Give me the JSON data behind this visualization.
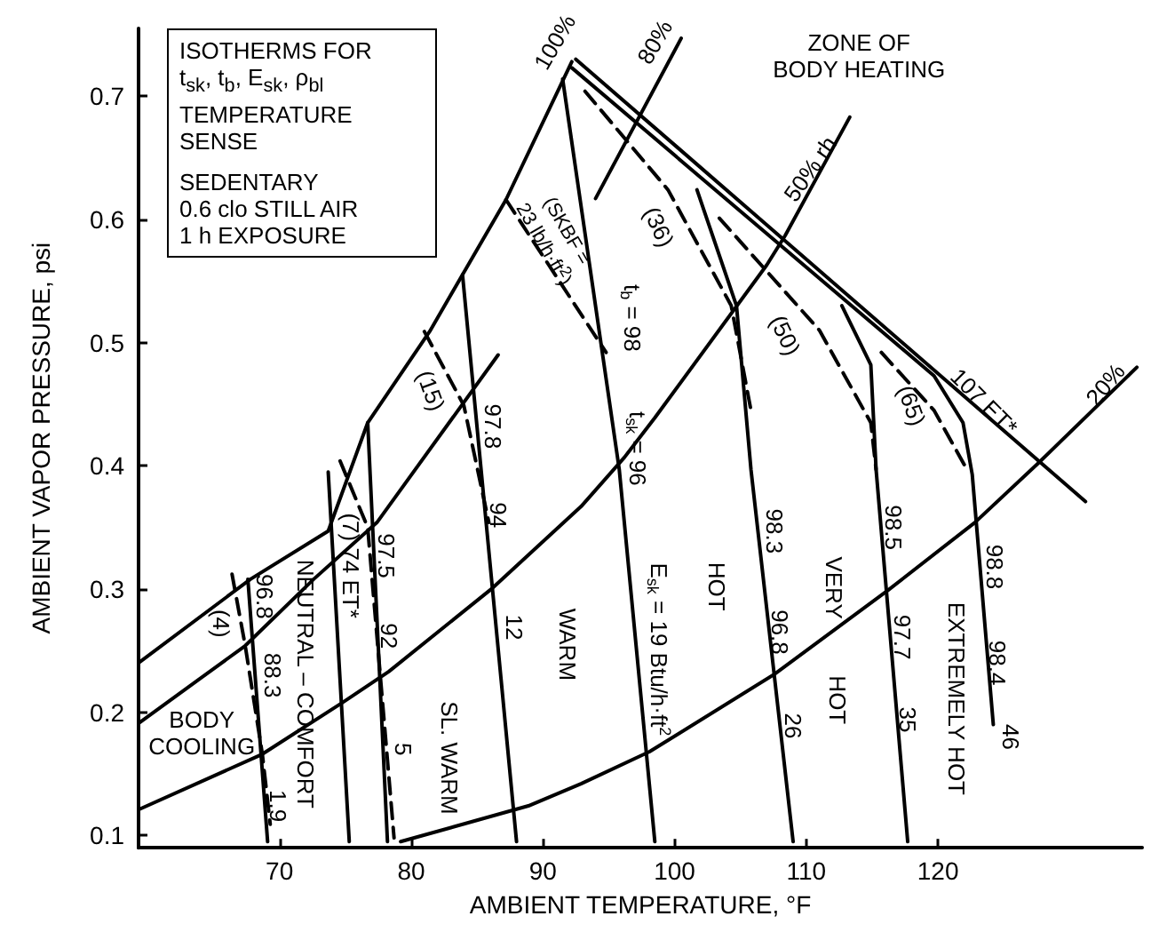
{
  "chart_data": {
    "type": "line",
    "xlabel": "AMBIENT TEMPERATURE, °F",
    "ylabel": "AMBIENT VAPOR PRESSURE, psi",
    "xlim": [
      59.3,
      135.5
    ],
    "xticks": [
      70,
      80,
      90,
      100,
      110,
      120
    ],
    "ylim": [
      0.09,
      0.755
    ],
    "yticks": [
      0.1,
      0.2,
      0.3,
      0.4,
      0.5,
      0.6,
      0.7
    ],
    "grid": false,
    "marker": "none",
    "series": [
      {
        "x": [
          59.3,
          67.8,
          73.7,
          76.7,
          81.4,
          87.2,
          92.2
        ],
        "values": [
          0.24,
          0.308,
          0.347,
          0.435,
          0.509,
          0.616,
          0.728
        ],
        "color": "#000000",
        "line_style": "solid"
      },
      {
        "x": [
          59.3,
          67.4,
          72.6,
          77.4,
          86.6,
          88.0,
          94.0,
          100.5
        ],
        "values": [
          0.191,
          0.254,
          0.308,
          0.354,
          0.49,
          null,
          0.617,
          0.747
        ],
        "color": "#000000",
        "line_style": "solid"
      },
      {
        "x": [
          59.3,
          68.7,
          74.8,
          78.3,
          86.2,
          92.9,
          96.2,
          98.5,
          107.0,
          108.4,
          113.3
        ],
        "values": [
          0.121,
          0.166,
          0.208,
          0.233,
          0.301,
          0.367,
          0.407,
          0.439,
          0.563,
          0.587,
          0.683
        ],
        "color": "#000000",
        "line_style": "solid"
      },
      {
        "x": [
          79.2,
          88.9,
          92.9,
          98.1,
          107.6,
          116.2,
          122.8,
          127.6,
          135.1
        ],
        "values": [
          0.095,
          0.124,
          0.142,
          0.168,
          0.231,
          0.299,
          0.354,
          0.402,
          0.48
        ],
        "color": "#000000",
        "line_style": "solid"
      },
      {
        "x": [
          92.5,
          131.2
        ],
        "values": [
          0.73,
          0.371
        ],
        "color": "#000000",
        "line_style": "solid"
      },
      {
        "x": [
          67.6,
          69.1
        ],
        "values": [
          0.308,
          0.095
        ],
        "color": "#000000",
        "line_style": "solid"
      },
      {
        "x": [
          73.7,
          75.3
        ],
        "values": [
          0.395,
          0.095
        ],
        "color": "#000000",
        "line_style": "solid"
      },
      {
        "x": [
          76.7,
          78.2
        ],
        "values": [
          0.435,
          0.095
        ],
        "color": "#000000",
        "line_style": "solid"
      },
      {
        "x": [
          83.9,
          88.0
        ],
        "values": [
          0.555,
          0.095
        ],
        "color": "#000000",
        "line_style": "solid"
      },
      {
        "x": [
          91.5,
          95.8,
          98.5
        ],
        "values": [
          0.714,
          0.397,
          0.095
        ],
        "color": "#000000",
        "line_style": "solid"
      },
      {
        "x": [
          101.7,
          104.7,
          105.8,
          109.0
        ],
        "values": [
          0.624,
          0.53,
          0.397,
          0.095
        ],
        "color": "#000000",
        "line_style": "solid"
      },
      {
        "x": [
          112.7,
          114.9,
          115.3,
          117.7
        ],
        "values": [
          0.53,
          0.482,
          0.397,
          0.095
        ],
        "color": "#000000",
        "line_style": "solid"
      },
      {
        "x": [
          92.2,
          119.7,
          121.9,
          122.6,
          124.2
        ],
        "values": [
          0.723,
          0.473,
          0.435,
          0.393,
          0.19
        ],
        "color": "#000000",
        "line_style": "solid"
      },
      {
        "x": [
          66.4,
          67.4,
          68.7,
          69.3
        ],
        "values": [
          0.312,
          0.254,
          0.166,
          0.109
        ],
        "color": "#000000",
        "line_style": "dashed"
      },
      {
        "x": [
          74.6,
          76.7,
          78.7
        ],
        "values": [
          0.404,
          0.35,
          0.098
        ],
        "color": "#000000",
        "line_style": "dashed"
      },
      {
        "x": [
          81.0,
          84.0,
          85.9
        ],
        "values": [
          0.509,
          0.449,
          0.354
        ],
        "color": "#000000",
        "line_style": "dashed"
      },
      {
        "x": [
          87.2,
          94.8
        ],
        "values": [
          0.616,
          0.492
        ],
        "color": "#000000",
        "line_style": "dashed"
      },
      {
        "x": [
          93.2,
          99.5,
          104.3,
          105.8
        ],
        "values": [
          0.704,
          0.624,
          0.53,
          0.445
        ],
        "color": "#000000",
        "line_style": "dashed"
      },
      {
        "x": [
          103.4,
          111.0,
          114.9,
          115.3
        ],
        "values": [
          0.601,
          0.51,
          0.435,
          0.397
        ],
        "color": "#000000",
        "line_style": "dashed"
      },
      {
        "x": [
          115.7,
          119.7,
          122.2
        ],
        "values": [
          0.492,
          0.445,
          0.397
        ],
        "color": "#000000",
        "line_style": "dashed"
      }
    ],
    "annotations": [
      "ISOTHERMS FOR",
      "t$_{sk}$, t$_{b}$, E$_{sk}$, ρ$_{bl}$",
      "TEMPERATURE SENSE",
      "SEDENTARY",
      "0.6 clo STILL AIR",
      "1 h EXPOSURE",
      "ZONE OF\nBODY HEATING",
      "100%",
      "80%",
      "50% rh",
      "20%",
      "107 ET*",
      "(SKBF =\n23 lb/h·ft$^{2}$)",
      "(15)",
      "(36)",
      "(50)",
      "(65)",
      "t$_{b}$ = 98",
      "t$_{sk}$ = 96",
      "E$_{sk}$ = 19 Btu/h·ft$^{2}$",
      "97.8",
      "94",
      "12",
      "96.8",
      "88.3",
      "1.9",
      "97.5",
      "92",
      "5",
      "(4)",
      "(7) 74 ET*",
      "NEUTRAL – COMFORT",
      "BODY\nCOOLING",
      "SL. WARM",
      "WARM",
      "HOT",
      "98.3",
      "96.8",
      "26",
      "VERY",
      "HOT",
      "98.5",
      "97.7",
      "35",
      "EXTREMELY HOT",
      "98.8",
      "98.4",
      "46"
    ]
  }
}
